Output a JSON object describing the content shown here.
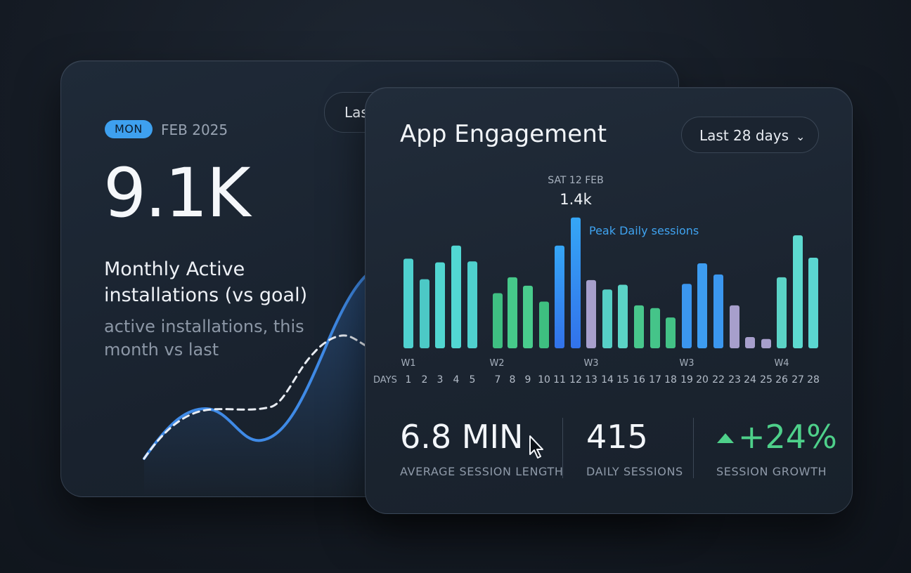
{
  "back_card": {
    "badge": "MON",
    "month": "FEB 2025",
    "big_value": "9.1K",
    "subtitle": "Monthly Active installations (vs goal)",
    "note": "active installations, this month vs last",
    "range_partial": "Las"
  },
  "front_card": {
    "title": "App Engagement",
    "range_label": "Last 28 days",
    "chart_data": {
      "type": "bar",
      "day_axis_label": "DAYS",
      "days": [
        "1",
        "2",
        "3",
        "4",
        "5",
        "7",
        "8",
        "9",
        "10",
        "11",
        "12",
        "13",
        "14",
        "15",
        "16",
        "17",
        "18",
        "19",
        "20",
        "22",
        "23",
        "24",
        "25",
        "26",
        "27",
        "28"
      ],
      "values": [
        0.96,
        0.74,
        0.92,
        1.1,
        0.93,
        0.59,
        0.76,
        0.67,
        0.5,
        1.1,
        1.4,
        0.73,
        0.63,
        0.68,
        0.46,
        0.43,
        0.33,
        0.69,
        0.91,
        0.79,
        0.46,
        0.12,
        0.1,
        0.76,
        1.21,
        0.97
      ],
      "colors": [
        "#4fd1cf",
        "#4cc9c6",
        "#51d6d1",
        "#52d7d3",
        "#4fd0cd",
        "#3fbf82",
        "#46c98a",
        "#49cc8d",
        "#3ebf80",
        "#3b8ff0",
        "#3a8af2",
        "#a79fcc",
        "#56cfc6",
        "#5bd3c6",
        "#48c78c",
        "#45c489",
        "#43c286",
        "#3b96ef",
        "#3d9cf0",
        "#3b97ef",
        "#a79fcc",
        "#a79fcc",
        "#a79fcc",
        "#5bd3c6",
        "#5ddad0",
        "#5bd6d0"
      ],
      "week_labels": [
        "W1",
        "W2",
        "W3",
        "W3",
        "W4"
      ],
      "annotation_day": "SAT 12 FEB",
      "annotation_value": "1.4k",
      "peak_label": "Peak Daily sessions"
    },
    "metrics": [
      {
        "value": "6.8 MIN",
        "label": "AVERAGE SESSION LENGTH"
      },
      {
        "value": "415",
        "label": "DAILY SESSIONS"
      },
      {
        "value": "+24%",
        "label": "SESSION GROWTH"
      }
    ]
  },
  "colors": {
    "accent_blue": "#3ea0ef",
    "accent_green": "#4ed08a",
    "accent_teal": "#4fd1cf",
    "muted_purple": "#a79fcc"
  }
}
